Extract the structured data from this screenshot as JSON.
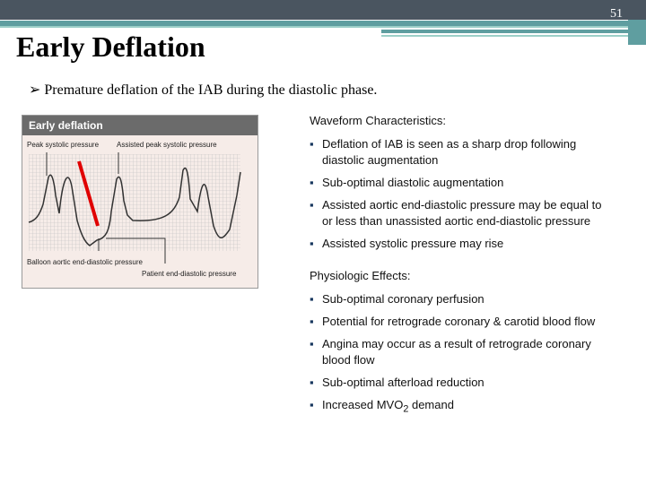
{
  "slide_number": "51",
  "title": "Early Deflation",
  "bullet": "Premature deflation of the IAB during the diastolic phase.",
  "figure": {
    "heading": "Early deflation",
    "labels": [
      "Peak systolic pressure",
      "Assisted peak systolic pressure",
      "Balloon aortic end-diastolic pressure",
      "Patient end-diastolic pressure"
    ]
  },
  "waveform": {
    "heading": "Waveform Characteristics:",
    "items": [
      "Deflation of IAB is seen as a sharp drop following diastolic augmentation",
      "Sub-optimal diastolic augmentation",
      "Assisted aortic end-diastolic pressure may be equal to or less than unassisted aortic end-diastolic pressure",
      "Assisted systolic pressure may rise"
    ]
  },
  "physiologic": {
    "heading": "Physiologic Effects:",
    "items": [
      "Sub-optimal coronary perfusion",
      "Potential for retrograde coronary & carotid blood flow",
      "Angina may occur as a result of retrograde coronary blood flow",
      "Sub-optimal afterload reduction"
    ],
    "last_item": [
      "Increased MVO",
      "2",
      " demand"
    ]
  }
}
